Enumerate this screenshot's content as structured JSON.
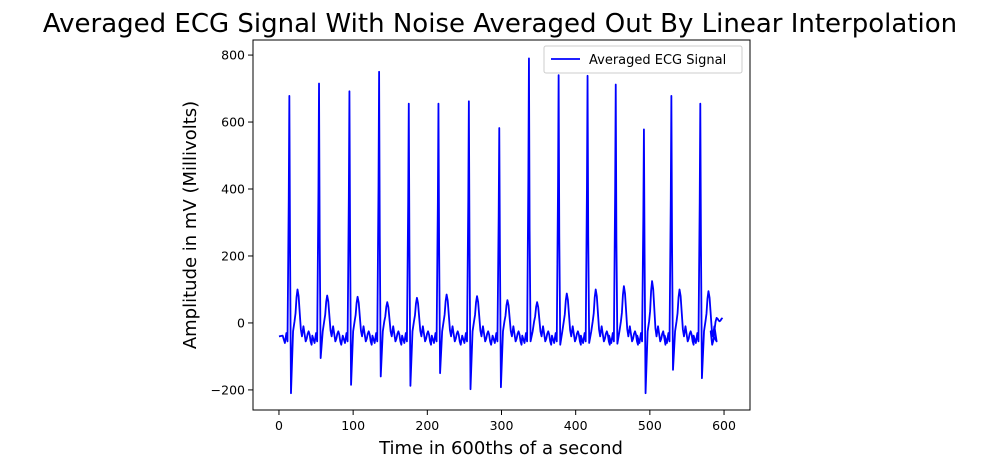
{
  "chart_data": {
    "type": "line",
    "title": "Averaged ECG Signal With Noise Averaged Out By Linear Interpolation",
    "xlabel": "Time in 600ths of a second",
    "ylabel": "Amplitude in mV (Millivolts)",
    "xlim": [
      -35,
      635
    ],
    "ylim": [
      -260,
      845
    ],
    "xticks": [
      0,
      100,
      200,
      300,
      400,
      500,
      600
    ],
    "xtick_labels": [
      "0",
      "100",
      "200",
      "300",
      "400",
      "500",
      "600"
    ],
    "yticks": [
      -200,
      0,
      200,
      400,
      600,
      800
    ],
    "ytick_labels": [
      "−200",
      "0",
      "200",
      "400",
      "600",
      "800"
    ],
    "grid": false,
    "legend": {
      "position": "top-right",
      "entries": [
        "Averaged ECG Signal"
      ]
    },
    "colors": {
      "series": "#0000ff"
    },
    "series": [
      {
        "name": "Averaged ECG Signal",
        "beats": [
          {
            "r_x": 14,
            "r_peak": 678,
            "s_min": -210,
            "t_peak": 100
          },
          {
            "r_x": 54,
            "r_peak": 715,
            "s_min": -105,
            "t_peak": 82
          },
          {
            "r_x": 95,
            "r_peak": 692,
            "s_min": -185,
            "t_peak": 78
          },
          {
            "r_x": 135,
            "r_peak": 750,
            "s_min": -160,
            "t_peak": 62
          },
          {
            "r_x": 175,
            "r_peak": 655,
            "s_min": -188,
            "t_peak": 75
          },
          {
            "r_x": 215,
            "r_peak": 655,
            "s_min": -150,
            "t_peak": 85
          },
          {
            "r_x": 256,
            "r_peak": 662,
            "s_min": -198,
            "t_peak": 80
          },
          {
            "r_x": 297,
            "r_peak": 582,
            "s_min": -192,
            "t_peak": 68
          },
          {
            "r_x": 337,
            "r_peak": 790,
            "s_min": -55,
            "t_peak": 62
          },
          {
            "r_x": 377,
            "r_peak": 740,
            "s_min": -65,
            "t_peak": 88
          },
          {
            "r_x": 416,
            "r_peak": 738,
            "s_min": -60,
            "t_peak": 100
          },
          {
            "r_x": 454,
            "r_peak": 712,
            "s_min": -62,
            "t_peak": 110
          },
          {
            "r_x": 492,
            "r_peak": 578,
            "s_min": -210,
            "t_peak": 125
          },
          {
            "r_x": 529,
            "r_peak": 678,
            "s_min": -140,
            "t_peak": 100
          },
          {
            "r_x": 568,
            "r_peak": 655,
            "s_min": -165,
            "t_peak": 95
          }
        ],
        "end": {
          "x": 598,
          "y": 15
        }
      }
    ]
  }
}
